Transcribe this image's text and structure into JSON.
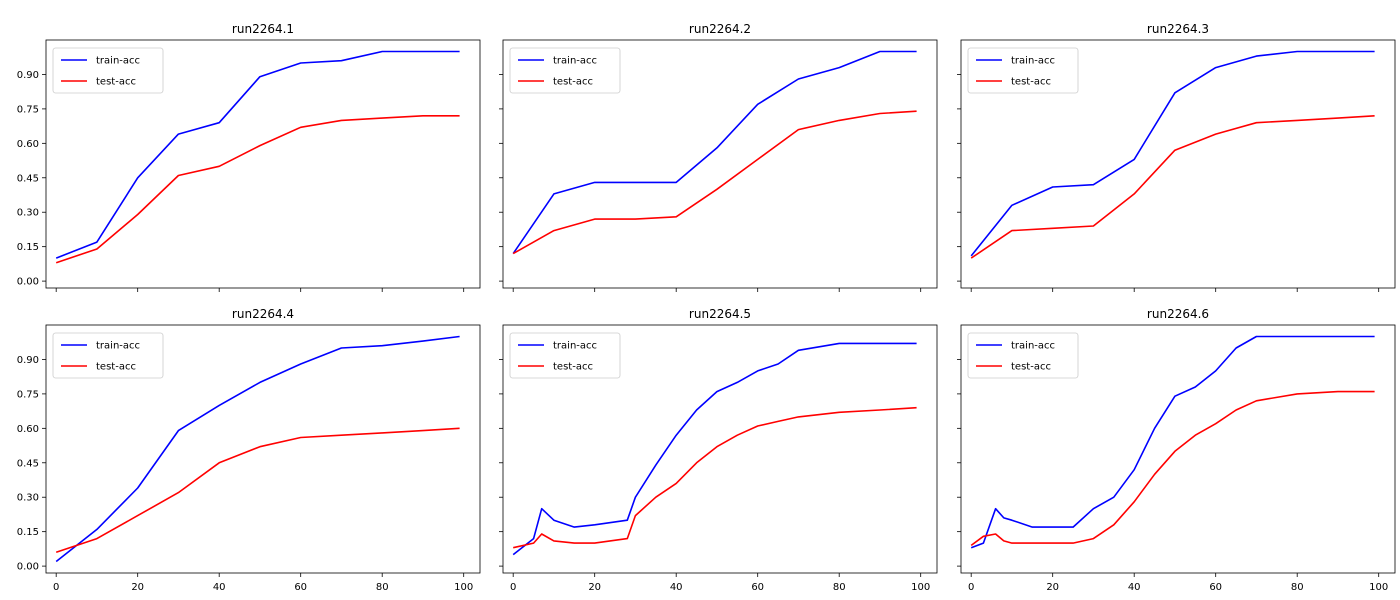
{
  "chart_data": [
    {
      "type": "line",
      "title": "run2264.1",
      "x": [
        0,
        10,
        20,
        30,
        40,
        50,
        60,
        70,
        80,
        90,
        99
      ],
      "series": [
        {
          "name": "train-acc",
          "color": "#0000ff",
          "values": [
            0.1,
            0.17,
            0.45,
            0.64,
            0.69,
            0.89,
            0.95,
            0.96,
            1.0,
            1.0,
            1.0
          ]
        },
        {
          "name": "test-acc",
          "color": "#ff0000",
          "values": [
            0.08,
            0.14,
            0.29,
            0.46,
            0.5,
            0.59,
            0.67,
            0.7,
            0.71,
            0.72,
            0.72
          ]
        }
      ],
      "xlim": [
        -2.5,
        104
      ],
      "ylim": [
        -0.03,
        1.05
      ],
      "yticks": [
        0.0,
        0.15,
        0.3,
        0.45,
        0.6,
        0.75,
        0.9
      ],
      "ytick_labels": [
        "0.00",
        "0.15",
        "0.30",
        "0.45",
        "0.60",
        "0.75",
        "0.90"
      ],
      "xticks": [
        0,
        20,
        40,
        60,
        80,
        100
      ],
      "xtick_labels": [
        "",
        "",
        "",
        "",
        "",
        ""
      ],
      "legend": "upper-left"
    },
    {
      "type": "line",
      "title": "run2264.2",
      "x": [
        0,
        10,
        20,
        30,
        40,
        50,
        60,
        70,
        80,
        90,
        99
      ],
      "series": [
        {
          "name": "train-acc",
          "color": "#0000ff",
          "values": [
            0.12,
            0.38,
            0.43,
            0.43,
            0.43,
            0.58,
            0.77,
            0.88,
            0.93,
            1.0,
            1.0
          ]
        },
        {
          "name": "test-acc",
          "color": "#ff0000",
          "values": [
            0.12,
            0.22,
            0.27,
            0.27,
            0.28,
            0.4,
            0.53,
            0.66,
            0.7,
            0.73,
            0.74
          ]
        }
      ],
      "xlim": [
        -2.5,
        104
      ],
      "ylim": [
        -0.03,
        1.05
      ],
      "yticks": [
        0.0,
        0.15,
        0.3,
        0.45,
        0.6,
        0.75,
        0.9
      ],
      "ytick_labels": [
        "",
        "",
        "",
        "",
        "",
        "",
        ""
      ],
      "xticks": [
        0,
        20,
        40,
        60,
        80,
        100
      ],
      "xtick_labels": [
        "",
        "",
        "",
        "",
        "",
        ""
      ],
      "legend": "upper-left"
    },
    {
      "type": "line",
      "title": "run2264.3",
      "x": [
        0,
        10,
        20,
        30,
        40,
        50,
        60,
        70,
        80,
        90,
        99
      ],
      "series": [
        {
          "name": "train-acc",
          "color": "#0000ff",
          "values": [
            0.11,
            0.33,
            0.41,
            0.42,
            0.53,
            0.82,
            0.93,
            0.98,
            1.0,
            1.0,
            1.0
          ]
        },
        {
          "name": "test-acc",
          "color": "#ff0000",
          "values": [
            0.1,
            0.22,
            0.23,
            0.24,
            0.38,
            0.57,
            0.64,
            0.69,
            0.7,
            0.71,
            0.72
          ]
        }
      ],
      "xlim": [
        -2.5,
        104
      ],
      "ylim": [
        -0.03,
        1.05
      ],
      "yticks": [
        0.0,
        0.15,
        0.3,
        0.45,
        0.6,
        0.75,
        0.9
      ],
      "ytick_labels": [
        "",
        "",
        "",
        "",
        "",
        "",
        ""
      ],
      "xticks": [
        0,
        20,
        40,
        60,
        80,
        100
      ],
      "xtick_labels": [
        "",
        "",
        "",
        "",
        "",
        ""
      ],
      "legend": "upper-left"
    },
    {
      "type": "line",
      "title": "run2264.4",
      "x": [
        0,
        10,
        20,
        30,
        40,
        50,
        60,
        70,
        80,
        90,
        99
      ],
      "series": [
        {
          "name": "train-acc",
          "color": "#0000ff",
          "values": [
            0.02,
            0.16,
            0.34,
            0.59,
            0.7,
            0.8,
            0.88,
            0.95,
            0.96,
            0.98,
            1.0
          ]
        },
        {
          "name": "test-acc",
          "color": "#ff0000",
          "values": [
            0.06,
            0.12,
            0.22,
            0.32,
            0.45,
            0.52,
            0.56,
            0.57,
            0.58,
            0.59,
            0.6
          ]
        }
      ],
      "xlim": [
        -2.5,
        104
      ],
      "ylim": [
        -0.03,
        1.05
      ],
      "yticks": [
        0.0,
        0.15,
        0.3,
        0.45,
        0.6,
        0.75,
        0.9
      ],
      "ytick_labels": [
        "0.00",
        "0.15",
        "0.30",
        "0.45",
        "0.60",
        "0.75",
        "0.90"
      ],
      "xticks": [
        0,
        20,
        40,
        60,
        80,
        100
      ],
      "xtick_labels": [
        "0",
        "20",
        "40",
        "60",
        "80",
        "100"
      ],
      "legend": "upper-left"
    },
    {
      "type": "line",
      "title": "run2264.5",
      "x": [
        0,
        5,
        7,
        10,
        15,
        20,
        28,
        30,
        35,
        40,
        45,
        50,
        55,
        60,
        65,
        70,
        80,
        90,
        99
      ],
      "series": [
        {
          "name": "train-acc",
          "color": "#0000ff",
          "values": [
            0.05,
            0.12,
            0.25,
            0.2,
            0.17,
            0.18,
            0.2,
            0.3,
            0.44,
            0.57,
            0.68,
            0.76,
            0.8,
            0.85,
            0.88,
            0.94,
            0.97,
            0.97,
            0.97
          ]
        },
        {
          "name": "test-acc",
          "color": "#ff0000",
          "values": [
            0.08,
            0.1,
            0.14,
            0.11,
            0.1,
            0.1,
            0.12,
            0.22,
            0.3,
            0.36,
            0.45,
            0.52,
            0.57,
            0.61,
            0.63,
            0.65,
            0.67,
            0.68,
            0.69
          ]
        }
      ],
      "xlim": [
        -2.5,
        104
      ],
      "ylim": [
        -0.03,
        1.05
      ],
      "yticks": [
        0.0,
        0.15,
        0.3,
        0.45,
        0.6,
        0.75,
        0.9
      ],
      "ytick_labels": [
        "",
        "",
        "",
        "",
        "",
        "",
        ""
      ],
      "xticks": [
        0,
        20,
        40,
        60,
        80,
        100
      ],
      "xtick_labels": [
        "0",
        "20",
        "40",
        "60",
        "80",
        "100"
      ],
      "legend": "upper-left"
    },
    {
      "type": "line",
      "title": "run2264.6",
      "x": [
        0,
        3,
        6,
        8,
        10,
        15,
        20,
        25,
        30,
        35,
        40,
        45,
        50,
        55,
        60,
        65,
        70,
        80,
        90,
        99
      ],
      "series": [
        {
          "name": "train-acc",
          "color": "#0000ff",
          "values": [
            0.08,
            0.1,
            0.25,
            0.21,
            0.2,
            0.17,
            0.17,
            0.17,
            0.25,
            0.3,
            0.42,
            0.6,
            0.74,
            0.78,
            0.85,
            0.95,
            1.0,
            1.0,
            1.0,
            1.0
          ]
        },
        {
          "name": "test-acc",
          "color": "#ff0000",
          "values": [
            0.09,
            0.13,
            0.14,
            0.11,
            0.1,
            0.1,
            0.1,
            0.1,
            0.12,
            0.18,
            0.28,
            0.4,
            0.5,
            0.57,
            0.62,
            0.68,
            0.72,
            0.75,
            0.76,
            0.76
          ]
        }
      ],
      "xlim": [
        -2.5,
        104
      ],
      "ylim": [
        -0.03,
        1.05
      ],
      "yticks": [
        0.0,
        0.15,
        0.3,
        0.45,
        0.6,
        0.75,
        0.9
      ],
      "ytick_labels": [
        "",
        "",
        "",
        "",
        "",
        "",
        ""
      ],
      "xticks": [
        0,
        20,
        40,
        60,
        80,
        100
      ],
      "xtick_labels": [
        "0",
        "20",
        "40",
        "60",
        "80",
        "100"
      ],
      "legend": "upper-left"
    }
  ]
}
